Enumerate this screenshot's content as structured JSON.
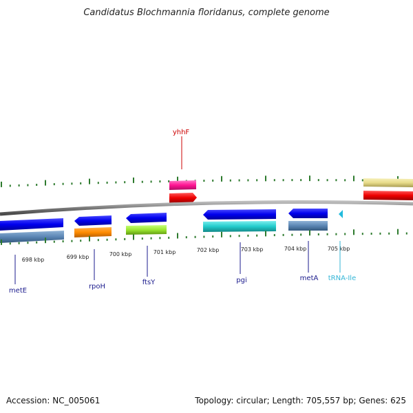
{
  "title": "Candidatus Blochmannia floridanus, complete genome",
  "footer": {
    "accession": "Accession: NC_005061",
    "summary": "Topology: circular; Length: 705,557 bp; Genes: 625"
  },
  "colors": {
    "backbone": "#8a8a8a",
    "tick": "#2d7a2d",
    "label_navy": "#1a1a8c",
    "label_red": "#cc0000",
    "label_cyan": "#33b5d6"
  },
  "ruler": {
    "labels": [
      "698 kbp",
      "699 kbp",
      "700 kbp",
      "701 kbp",
      "702 kbp",
      "703 kbp",
      "704 kbp",
      "705 kbp"
    ]
  },
  "genes": [
    {
      "name": "metE",
      "color": "navy"
    },
    {
      "name": "rpoH",
      "color": "navy"
    },
    {
      "name": "ftsY",
      "color": "navy"
    },
    {
      "name": "pgi",
      "color": "navy"
    },
    {
      "name": "metA",
      "color": "navy"
    },
    {
      "name": "tRNA-Ile",
      "color": "cyan"
    },
    {
      "name": "yhhF",
      "color": "red"
    }
  ]
}
